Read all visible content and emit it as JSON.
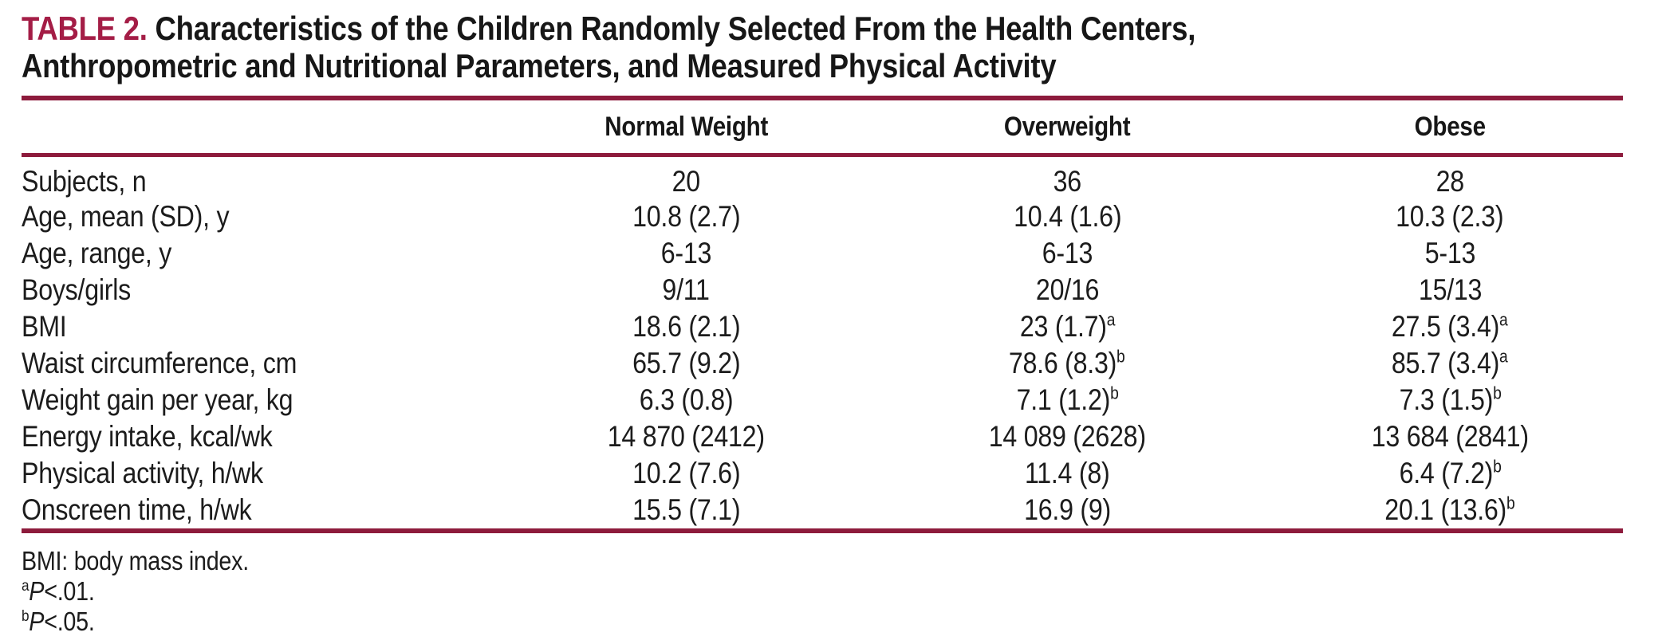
{
  "title": {
    "label": "TABLE 2.",
    "text": "Characteristics of the Children Randomly Selected From the Health Centers, Anthropometric and Nutritional Parameters, and Measured Physical Activity"
  },
  "colors": {
    "title_accent": "#a41d46",
    "rule": "#8d1b3c",
    "text": "#1c1c1c"
  },
  "table": {
    "columns": [
      "Normal Weight",
      "Overweight",
      "Obese"
    ],
    "rows": [
      {
        "label": "Subjects, n",
        "values": [
          {
            "text": "20"
          },
          {
            "text": "36"
          },
          {
            "text": "28"
          }
        ]
      },
      {
        "label": "Age, mean (SD), y",
        "values": [
          {
            "text": "10.8 (2.7)"
          },
          {
            "text": "10.4 (1.6)"
          },
          {
            "text": "10.3 (2.3)"
          }
        ]
      },
      {
        "label": "Age, range, y",
        "values": [
          {
            "text": "6-13"
          },
          {
            "text": "6-13"
          },
          {
            "text": "5-13"
          }
        ]
      },
      {
        "label": "Boys/girls",
        "values": [
          {
            "text": "9/11"
          },
          {
            "text": "20/16"
          },
          {
            "text": "15/13"
          }
        ]
      },
      {
        "label": "BMI",
        "values": [
          {
            "text": "18.6 (2.1)"
          },
          {
            "text": "23 (1.7)",
            "sup": "a"
          },
          {
            "text": "27.5 (3.4)",
            "sup": "a"
          }
        ]
      },
      {
        "label": "Waist circumference, cm",
        "values": [
          {
            "text": "65.7 (9.2)"
          },
          {
            "text": "78.6 (8.3)",
            "sup": "b"
          },
          {
            "text": "85.7 (3.4)",
            "sup": "a"
          }
        ]
      },
      {
        "label": "Weight gain per year, kg",
        "values": [
          {
            "text": "6.3 (0.8)"
          },
          {
            "text": "7.1 (1.2)",
            "sup": "b"
          },
          {
            "text": "7.3 (1.5)",
            "sup": "b"
          }
        ]
      },
      {
        "label": "Energy intake, kcal/wk",
        "values": [
          {
            "text": "14 870 (2412)"
          },
          {
            "text": "14 089 (2628)"
          },
          {
            "text": "13 684 (2841)"
          }
        ]
      },
      {
        "label": "Physical activity, h/wk",
        "values": [
          {
            "text": "10.2 (7.6)"
          },
          {
            "text": "11.4 (8)"
          },
          {
            "text": "6.4 (7.2)",
            "sup": "b"
          }
        ]
      },
      {
        "label": "Onscreen time, h/wk",
        "values": [
          {
            "text": "15.5 (7.1)"
          },
          {
            "text": "16.9 (9)"
          },
          {
            "text": "20.1 (13.6)",
            "sup": "b"
          }
        ]
      }
    ]
  },
  "footnotes": {
    "abbrev": "BMI: body mass index.",
    "notes": [
      {
        "sup": "a",
        "symbol": "P",
        "rest": "<.01."
      },
      {
        "sup": "b",
        "symbol": "P",
        "rest": "<.05."
      }
    ]
  }
}
